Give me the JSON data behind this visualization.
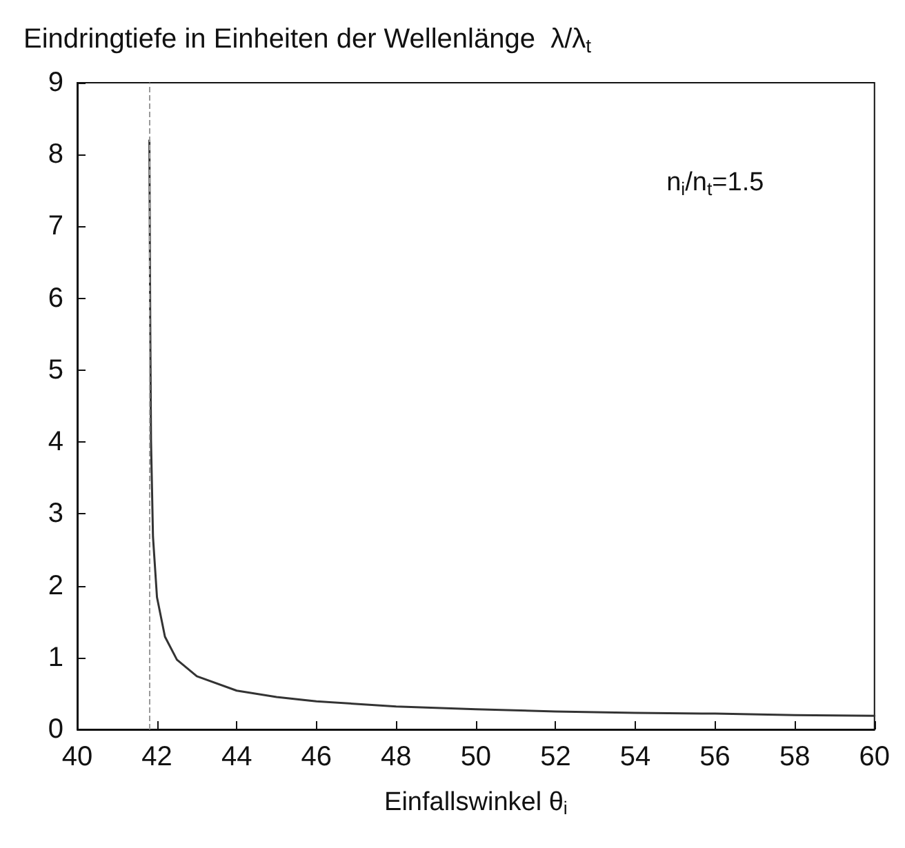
{
  "chart_data": {
    "type": "line",
    "title": "Eindringtiefe in Einheiten der Wellenlänge  λ/λ$_{t}$",
    "xlabel": "Einfallswinkel θ$_{i}$",
    "x": [
      41.81,
      41.83,
      41.85,
      41.9,
      42,
      42.2,
      42.5,
      43,
      44,
      45,
      46,
      48,
      50,
      52,
      54,
      56,
      58,
      60
    ],
    "series": [
      {
        "color": "#333333",
        "values": [
          8.2,
          5.7,
          4.03,
          2.68,
          1.84,
          1.29,
          0.97,
          0.74,
          0.54,
          0.45,
          0.39,
          0.32,
          0.28,
          0.25,
          0.23,
          0.22,
          0.2,
          0.19
        ]
      }
    ],
    "xlim": [
      40,
      60
    ],
    "xticks": [
      40,
      42,
      44,
      46,
      48,
      50,
      52,
      54,
      56,
      58,
      60
    ],
    "ylim": [
      0,
      9
    ],
    "yticks": [
      0,
      1,
      2,
      3,
      4,
      5,
      6,
      7,
      8,
      9
    ],
    "ref_lines": [
      {
        "axis": "x",
        "value": 41.8,
        "color": "#999999",
        "line_style": "dashed"
      }
    ],
    "annotations": [
      "n$_{i}$/n$_{t}$=1.5"
    ],
    "grid": false,
    "marker": "none",
    "line_style": "solid"
  }
}
